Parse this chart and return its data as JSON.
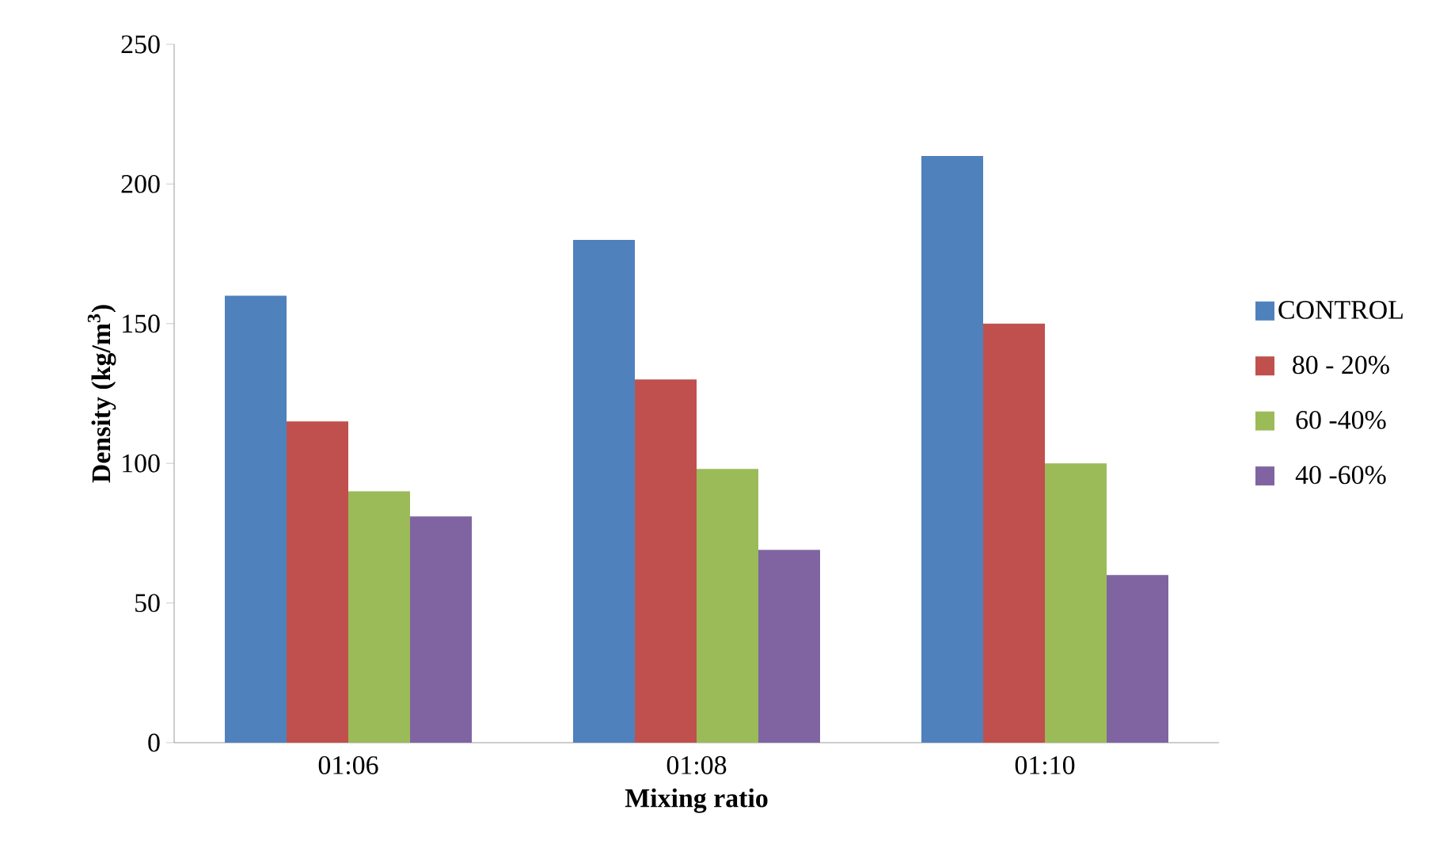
{
  "chart_data": {
    "type": "bar",
    "xlabel": "Mixing ratio",
    "ylabel": "Density (kg/m$^{3}$)",
    "categories": [
      "01:06",
      "01:08",
      "01:10"
    ],
    "series": [
      {
        "name": "CONTROL",
        "color": "#4f81bd",
        "values": [
          160,
          180,
          210
        ]
      },
      {
        "name": "80 - 20%",
        "color": "#c0504d",
        "values": [
          115,
          130,
          150
        ]
      },
      {
        "name": "60 -40%",
        "color": "#9bbb59",
        "values": [
          90,
          98,
          100
        ]
      },
      {
        "name": "40 -60%",
        "color": "#8064a2",
        "values": [
          81,
          69,
          60
        ]
      }
    ],
    "ylim": [
      0,
      250
    ],
    "yticks": [
      0,
      50,
      100,
      150,
      200,
      250
    ],
    "legend": "right"
  }
}
